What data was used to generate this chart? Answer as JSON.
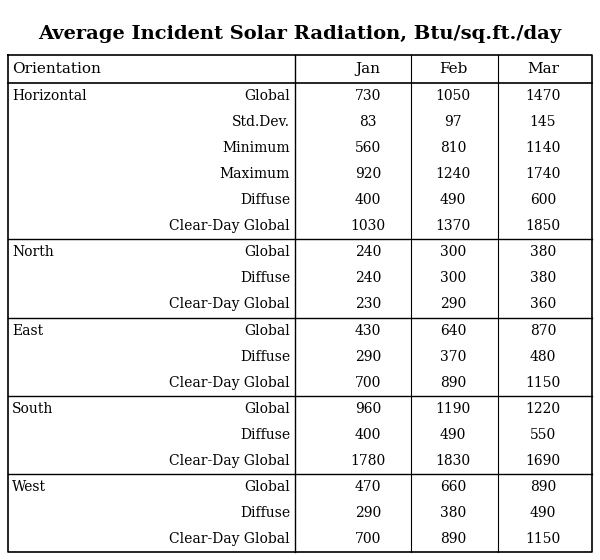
{
  "title": "Average Incident Solar Radiation, Btu/sq.ft./day",
  "rows": [
    {
      "col1": "Horizontal",
      "col2": "Global",
      "jan": "730",
      "feb": "1050",
      "mar": "1470"
    },
    {
      "col1": "",
      "col2": "Std.Dev.",
      "jan": "83",
      "feb": "97",
      "mar": "145"
    },
    {
      "col1": "",
      "col2": "Minimum",
      "jan": "560",
      "feb": "810",
      "mar": "1140"
    },
    {
      "col1": "",
      "col2": "Maximum",
      "jan": "920",
      "feb": "1240",
      "mar": "1740"
    },
    {
      "col1": "",
      "col2": "Diffuse",
      "jan": "400",
      "feb": "490",
      "mar": "600"
    },
    {
      "col1": "",
      "col2": "Clear-Day Global",
      "jan": "1030",
      "feb": "1370",
      "mar": "1850"
    },
    {
      "col1": "North",
      "col2": "Global",
      "jan": "240",
      "feb": "300",
      "mar": "380"
    },
    {
      "col1": "",
      "col2": "Diffuse",
      "jan": "240",
      "feb": "300",
      "mar": "380"
    },
    {
      "col1": "",
      "col2": "Clear-Day Global",
      "jan": "230",
      "feb": "290",
      "mar": "360"
    },
    {
      "col1": "East",
      "col2": "Global",
      "jan": "430",
      "feb": "640",
      "mar": "870"
    },
    {
      "col1": "",
      "col2": "Diffuse",
      "jan": "290",
      "feb": "370",
      "mar": "480"
    },
    {
      "col1": "",
      "col2": "Clear-Day Global",
      "jan": "700",
      "feb": "890",
      "mar": "1150"
    },
    {
      "col1": "South",
      "col2": "Global",
      "jan": "960",
      "feb": "1190",
      "mar": "1220"
    },
    {
      "col1": "",
      "col2": "Diffuse",
      "jan": "400",
      "feb": "490",
      "mar": "550"
    },
    {
      "col1": "",
      "col2": "Clear-Day Global",
      "jan": "1780",
      "feb": "1830",
      "mar": "1690"
    },
    {
      "col1": "West",
      "col2": "Global",
      "jan": "470",
      "feb": "660",
      "mar": "890"
    },
    {
      "col1": "",
      "col2": "Diffuse",
      "jan": "290",
      "feb": "380",
      "mar": "490"
    },
    {
      "col1": "",
      "col2": "Clear-Day Global",
      "jan": "700",
      "feb": "890",
      "mar": "1150"
    }
  ],
  "section_starts": [
    6,
    9,
    12,
    15
  ],
  "pair_rows": [
    0,
    2,
    4
  ],
  "background_color": "#ffffff",
  "line_color": "#000000",
  "text_color": "#000000",
  "title_fontsize": 14,
  "header_fontsize": 11,
  "cell_fontsize": 10
}
